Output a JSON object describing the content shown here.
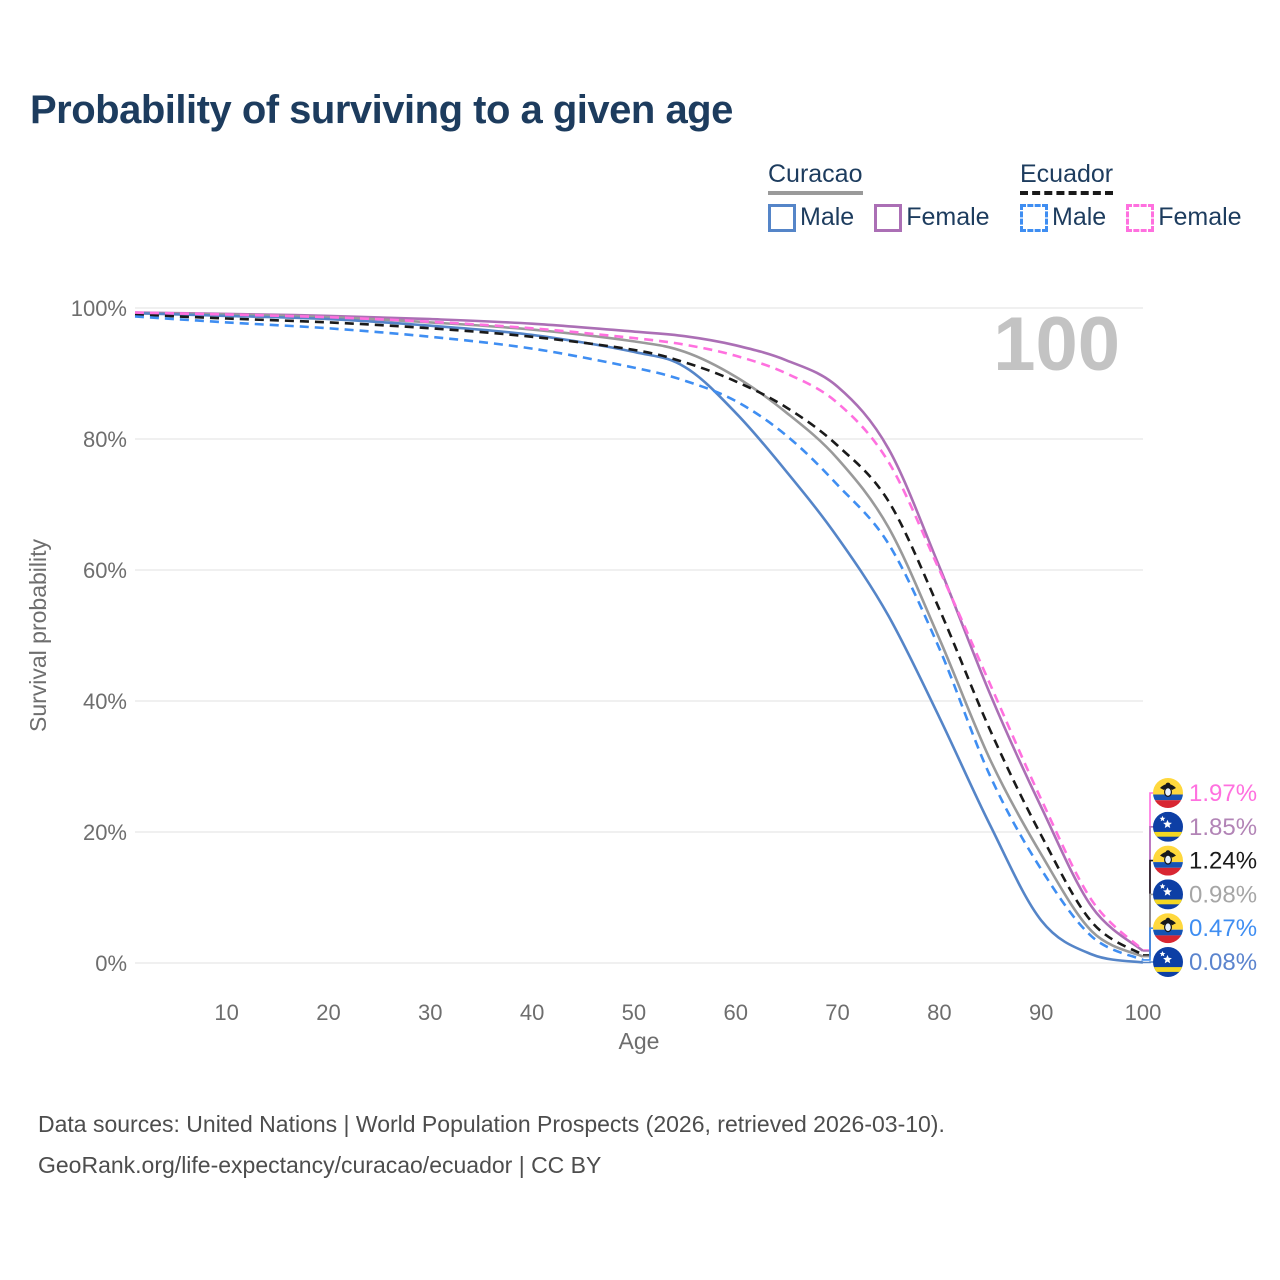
{
  "title": "Probability of surviving to a given age",
  "watermark": "100",
  "colors": {
    "title_navy": "#1d3c5e",
    "axis_gray": "#6e6e6e",
    "gridline": "#e8e8e8",
    "watermark_gray": "#c3c3c3",
    "footer_gray": "#4d4d4d"
  },
  "legend": {
    "groups": [
      {
        "label": "Curacao",
        "underline_style": "solid",
        "underline_color": "#9a9a9a",
        "items": [
          {
            "label": "Male",
            "color": "#5585c8",
            "dashed": false
          },
          {
            "label": "Female",
            "color": "#ab6fb5",
            "dashed": false
          }
        ]
      },
      {
        "label": "Ecuador",
        "underline_style": "dashed",
        "underline_color": "#1a1a1a",
        "items": [
          {
            "label": "Male",
            "color": "#3f8ef2",
            "dashed": true
          },
          {
            "label": "Female",
            "color": "#ff70df",
            "dashed": true
          }
        ]
      }
    ]
  },
  "chart_data": {
    "type": "line",
    "title": "Probability of surviving to a given age",
    "xlabel": "Age",
    "ylabel": "Survival probability",
    "xlim": [
      1,
      100
    ],
    "ylim": [
      0,
      100
    ],
    "grid": "horizontal-only",
    "x_ticks": [
      10,
      20,
      30,
      40,
      50,
      60,
      70,
      80,
      90,
      100
    ],
    "y_ticks": [
      0,
      20,
      40,
      60,
      80,
      100
    ],
    "y_tick_suffix": "%",
    "x": [
      1,
      10,
      20,
      30,
      40,
      50,
      55,
      60,
      65,
      70,
      75,
      80,
      85,
      90,
      95,
      100
    ],
    "series": [
      {
        "key": "curacao_female",
        "name": "Curacao Female",
        "country": "Curacao",
        "sex": "Female",
        "color": "#ab6fb5",
        "dash": "solid",
        "values": [
          99.3,
          99.1,
          98.8,
          98.3,
          97.6,
          96.4,
          95.7,
          94.3,
          92.0,
          88.0,
          78.5,
          60.5,
          41.0,
          23.8,
          8.5,
          1.85
        ]
      },
      {
        "key": "curacao_total",
        "name": "Curacao (both sexes)",
        "country": "Curacao",
        "sex": "Both",
        "color": "#9a9a9a",
        "dash": "solid",
        "values": [
          99.2,
          99.0,
          98.6,
          97.8,
          96.7,
          94.9,
          93.3,
          89.5,
          84.0,
          77.0,
          66.5,
          49.5,
          31.0,
          16.6,
          4.8,
          0.98
        ]
      },
      {
        "key": "curacao_male",
        "name": "Curacao Male",
        "country": "Curacao",
        "sex": "Male",
        "color": "#5585c8",
        "dash": "solid",
        "values": [
          99.2,
          98.8,
          98.3,
          97.3,
          95.9,
          93.3,
          91.0,
          84.0,
          75.0,
          65.0,
          53.0,
          37.5,
          21.0,
          6.5,
          1.3,
          0.08
        ]
      },
      {
        "key": "ecuador_total",
        "name": "Ecuador (both sexes)",
        "country": "Ecuador",
        "sex": "Both",
        "color": "#1a1a1a",
        "dash": "9 6",
        "values": [
          99.0,
          98.4,
          97.8,
          96.9,
          95.6,
          93.6,
          91.7,
          88.8,
          84.8,
          79.0,
          70.5,
          54.0,
          35.5,
          19.5,
          6.2,
          1.24
        ]
      },
      {
        "key": "ecuador_male",
        "name": "Ecuador Male",
        "country": "Ecuador",
        "sex": "Male",
        "color": "#3f8ef2",
        "dash": "9 6",
        "values": [
          98.7,
          97.8,
          96.9,
          95.6,
          93.8,
          90.9,
          88.9,
          85.8,
          80.5,
          73.0,
          64.0,
          48.0,
          28.5,
          14.3,
          4.0,
          0.47
        ]
      },
      {
        "key": "ecuador_female",
        "name": "Ecuador Female",
        "country": "Ecuador",
        "sex": "Female",
        "color": "#ff70df",
        "dash": "9 6",
        "values": [
          99.3,
          99.0,
          98.6,
          97.9,
          96.9,
          95.4,
          94.4,
          92.7,
          90.0,
          85.5,
          76.5,
          60.0,
          42.5,
          25.0,
          9.5,
          1.97
        ]
      }
    ],
    "end_labels": [
      {
        "series": "ecuador_female",
        "flag": "ecuador",
        "value": "1.97%",
        "color": "#ff70df"
      },
      {
        "series": "curacao_female",
        "flag": "curacao",
        "value": "1.85%",
        "color": "#b284b6"
      },
      {
        "series": "ecuador_total",
        "flag": "ecuador",
        "value": "1.24%",
        "color": "#1a1a1a"
      },
      {
        "series": "curacao_total",
        "flag": "curacao",
        "value": "0.98%",
        "color": "#a6a6a6"
      },
      {
        "series": "ecuador_male",
        "flag": "ecuador",
        "value": "0.47%",
        "color": "#3f8ef2"
      },
      {
        "series": "curacao_male",
        "flag": "curacao",
        "value": "0.08%",
        "color": "#5b84ce"
      }
    ],
    "flag_colors": {
      "ecuador": {
        "yellow": "#ffd83d",
        "blue": "#1653b4",
        "red": "#d82632",
        "emblem": "#17181d"
      },
      "curacao": {
        "blue": "#0d3fa5",
        "yellow": "#f4d722",
        "star": "#ffffff"
      }
    }
  },
  "footer": {
    "line1": "Data sources: United Nations | World Population Prospects (2026, retrieved 2026-03-10).",
    "line2": "GeoRank.org/life-expectancy/curacao/ecuador | CC BY"
  }
}
